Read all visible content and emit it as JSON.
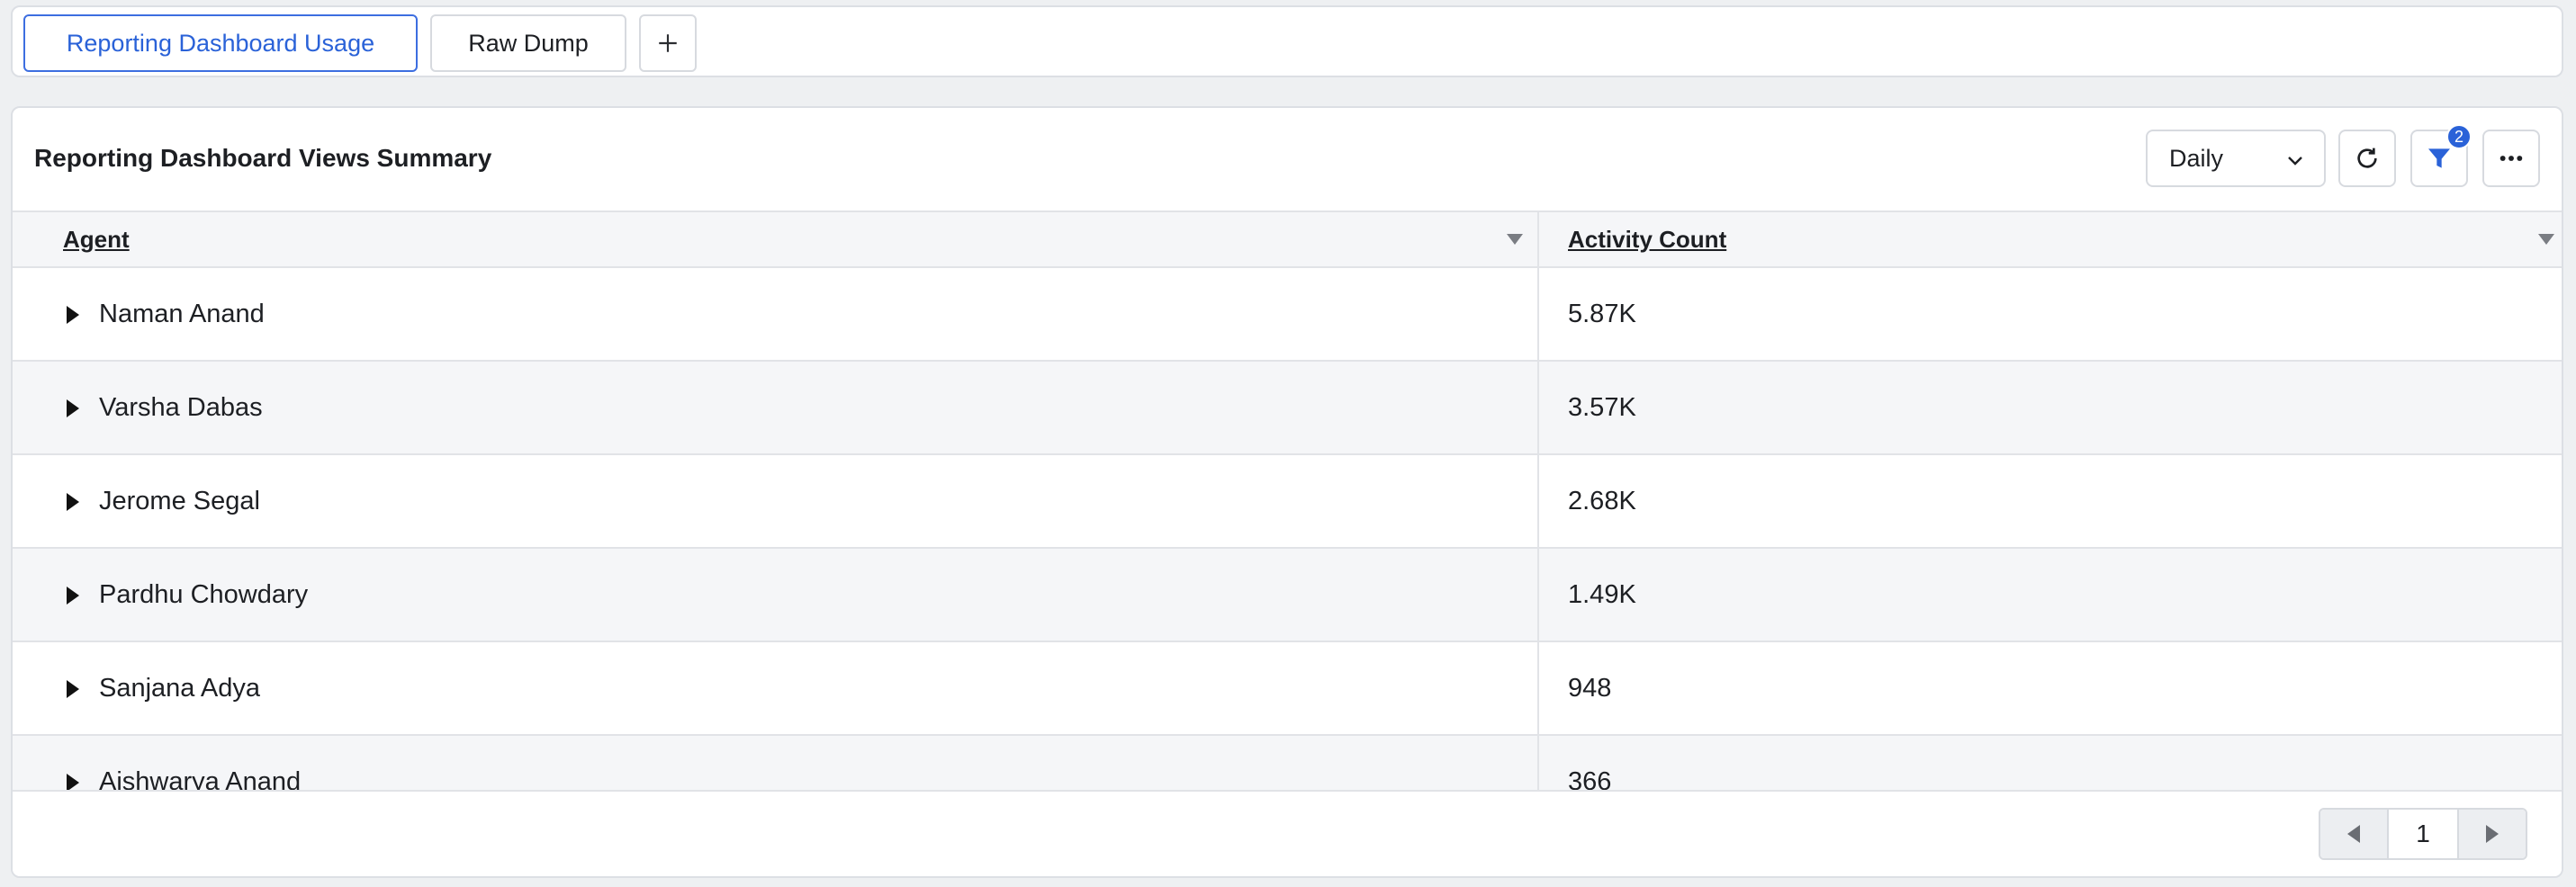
{
  "tabs": {
    "active_label": "Reporting Dashboard Usage",
    "raw_label": "Raw Dump",
    "add_icon": "plus-icon"
  },
  "panel": {
    "title": "Reporting Dashboard Views Summary",
    "granularity": "Daily",
    "filter_count": "2"
  },
  "table": {
    "columns": [
      "Agent",
      "Activity Count"
    ],
    "rows": [
      {
        "agent": "Naman Anand",
        "count": "5.87K"
      },
      {
        "agent": "Varsha Dabas",
        "count": "3.57K"
      },
      {
        "agent": "Jerome Segal",
        "count": "2.68K"
      },
      {
        "agent": "Pardhu Chowdary",
        "count": "1.49K"
      },
      {
        "agent": "Sanjana Adya",
        "count": "948"
      },
      {
        "agent": "Aishwarya Anand",
        "count": "366"
      }
    ]
  },
  "pagination": {
    "page": "1"
  },
  "colors": {
    "accent": "#2a62d8",
    "border": "#dcdfe4",
    "row_alt": "#f5f6f8"
  }
}
